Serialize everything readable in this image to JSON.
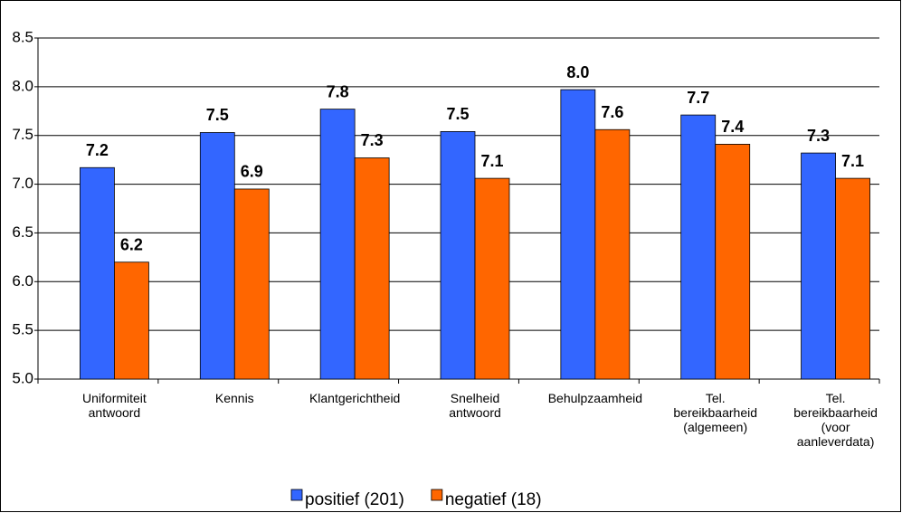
{
  "chart_data": {
    "type": "bar",
    "categories": [
      "Uniformiteit\nantwoord",
      "Kennis",
      "Klantgerichtheid",
      "Snelheid\nantwoord",
      "Behulpzaamheid",
      "Tel.\nbereikbaarheid\n(algemeen)",
      "Tel.\nbereikbaarheid\n(voor\naanleverdata)"
    ],
    "series": [
      {
        "name": "positief (201)",
        "color": "#3366ff",
        "values": [
          7.17,
          7.53,
          7.77,
          7.54,
          7.97,
          7.71,
          7.32
        ],
        "value_labels": [
          "7.2",
          "7.5",
          "7.8",
          "7.5",
          "8.0",
          "7.7",
          "7.3"
        ]
      },
      {
        "name": "negatief (18)",
        "color": "#ff6600",
        "values": [
          6.2,
          6.95,
          7.27,
          7.06,
          7.56,
          7.41,
          7.06
        ],
        "value_labels": [
          "6.2",
          "6.9",
          "7.3",
          "7.1",
          "7.6",
          "7.4",
          "7.1"
        ]
      }
    ],
    "ylim": [
      5.0,
      8.5
    ],
    "yticks": [
      {
        "value": 5,
        "label": "5.0"
      },
      5.5,
      {
        "value": 6,
        "label": "6.0"
      },
      6.5,
      {
        "value": 7,
        "label": "7.0"
      },
      7.5,
      {
        "value": 8,
        "label": "8.0"
      },
      8.5
    ],
    "grid": true,
    "legend": "bottom"
  }
}
